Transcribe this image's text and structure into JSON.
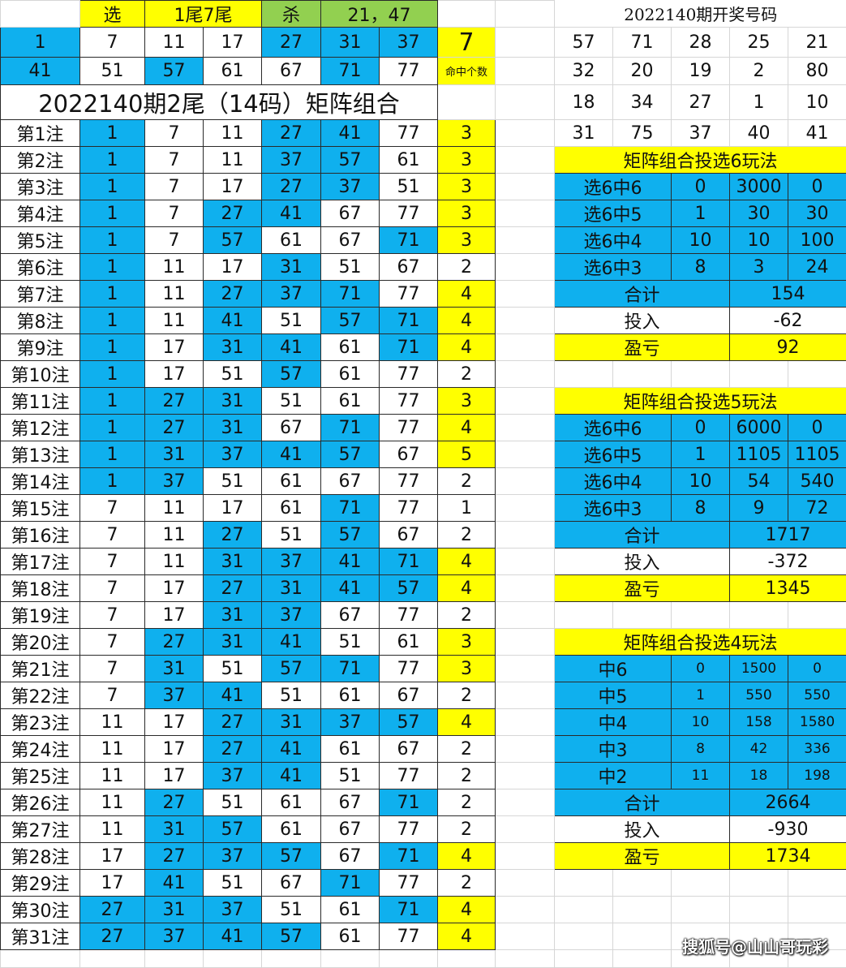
{
  "colors": {
    "hit_blue": "#0fb0ee",
    "highlight_yellow": "#ffff00",
    "kill_green": "#92d050"
  },
  "header": {
    "select_label": "选",
    "select_value": "1尾7尾",
    "kill_label": "杀",
    "kill_value": "21，47"
  },
  "pool": [
    [
      1,
      7,
      11,
      17,
      27,
      31,
      37
    ],
    [
      41,
      51,
      57,
      61,
      67,
      71,
      77
    ]
  ],
  "pool_hits": "7",
  "pool_hits_label": "命中个数",
  "title": "2022140期2尾（14码）矩阵组合",
  "bets": [
    {
      "label": "第1注",
      "nums": [
        1,
        7,
        11,
        27,
        41,
        77
      ],
      "hits": 3
    },
    {
      "label": "第2注",
      "nums": [
        1,
        7,
        11,
        37,
        57,
        61
      ],
      "hits": 3
    },
    {
      "label": "第3注",
      "nums": [
        1,
        7,
        17,
        27,
        37,
        51
      ],
      "hits": 3
    },
    {
      "label": "第4注",
      "nums": [
        1,
        7,
        27,
        41,
        67,
        77
      ],
      "hits": 3
    },
    {
      "label": "第5注",
      "nums": [
        1,
        7,
        57,
        61,
        67,
        71
      ],
      "hits": 3
    },
    {
      "label": "第6注",
      "nums": [
        1,
        11,
        17,
        31,
        51,
        67
      ],
      "hits": 2
    },
    {
      "label": "第7注",
      "nums": [
        1,
        11,
        27,
        37,
        71,
        77
      ],
      "hits": 4
    },
    {
      "label": "第8注",
      "nums": [
        1,
        11,
        41,
        51,
        57,
        71
      ],
      "hits": 4
    },
    {
      "label": "第9注",
      "nums": [
        1,
        17,
        31,
        41,
        61,
        71
      ],
      "hits": 4
    },
    {
      "label": "第10注",
      "nums": [
        1,
        17,
        51,
        57,
        61,
        77
      ],
      "hits": 2
    },
    {
      "label": "第11注",
      "nums": [
        1,
        27,
        31,
        51,
        61,
        77
      ],
      "hits": 3
    },
    {
      "label": "第12注",
      "nums": [
        1,
        27,
        31,
        67,
        71,
        77
      ],
      "hits": 4
    },
    {
      "label": "第13注",
      "nums": [
        1,
        31,
        37,
        41,
        57,
        67
      ],
      "hits": 5
    },
    {
      "label": "第14注",
      "nums": [
        1,
        37,
        51,
        61,
        67,
        77
      ],
      "hits": 2
    },
    {
      "label": "第15注",
      "nums": [
        7,
        11,
        17,
        61,
        71,
        77
      ],
      "hits": 1
    },
    {
      "label": "第16注",
      "nums": [
        7,
        11,
        27,
        51,
        57,
        67
      ],
      "hits": 2
    },
    {
      "label": "第17注",
      "nums": [
        7,
        11,
        31,
        37,
        41,
        71
      ],
      "hits": 4
    },
    {
      "label": "第18注",
      "nums": [
        7,
        17,
        27,
        31,
        41,
        57
      ],
      "hits": 4
    },
    {
      "label": "第19注",
      "nums": [
        7,
        17,
        31,
        37,
        67,
        77
      ],
      "hits": 2
    },
    {
      "label": "第20注",
      "nums": [
        7,
        27,
        31,
        41,
        51,
        61
      ],
      "hits": 3
    },
    {
      "label": "第21注",
      "nums": [
        7,
        31,
        51,
        57,
        71,
        77
      ],
      "hits": 3
    },
    {
      "label": "第22注",
      "nums": [
        7,
        37,
        41,
        51,
        61,
        67
      ],
      "hits": 2
    },
    {
      "label": "第23注",
      "nums": [
        11,
        17,
        27,
        31,
        37,
        57
      ],
      "hits": 4
    },
    {
      "label": "第24注",
      "nums": [
        11,
        17,
        27,
        41,
        61,
        67
      ],
      "hits": 2
    },
    {
      "label": "第25注",
      "nums": [
        11,
        17,
        37,
        41,
        51,
        77
      ],
      "hits": 2
    },
    {
      "label": "第26注",
      "nums": [
        11,
        27,
        51,
        61,
        67,
        71
      ],
      "hits": 2
    },
    {
      "label": "第27注",
      "nums": [
        11,
        31,
        57,
        61,
        67,
        77
      ],
      "hits": 2
    },
    {
      "label": "第28注",
      "nums": [
        17,
        27,
        37,
        57,
        67,
        71
      ],
      "hits": 4
    },
    {
      "label": "第29注",
      "nums": [
        17,
        41,
        51,
        67,
        71,
        77
      ],
      "hits": 2
    },
    {
      "label": "第30注",
      "nums": [
        27,
        31,
        37,
        51,
        61,
        71
      ],
      "hits": 4
    },
    {
      "label": "第31注",
      "nums": [
        27,
        37,
        41,
        57,
        61,
        77
      ],
      "hits": 4
    }
  ],
  "draw": {
    "title": "2022140期开奖号码",
    "rows": [
      [
        57,
        71,
        28,
        25,
        21
      ],
      [
        32,
        20,
        19,
        2,
        80
      ],
      [
        18,
        34,
        27,
        1,
        10
      ],
      [
        31,
        75,
        37,
        40,
        41
      ]
    ]
  },
  "plans": [
    {
      "title": "矩阵组合投选6玩法",
      "rows": [
        [
          "选6中6",
          "0",
          "3000",
          "0"
        ],
        [
          "选6中5",
          "1",
          "30",
          "30"
        ],
        [
          "选6中4",
          "10",
          "10",
          "100"
        ],
        [
          "选6中3",
          "8",
          "3",
          "24"
        ]
      ],
      "total_label": "合计",
      "total": "154",
      "cost_label": "投入",
      "cost": "-62",
      "profit_label": "盈亏",
      "profit": "92"
    },
    {
      "title": "矩阵组合投选5玩法",
      "rows": [
        [
          "选6中6",
          "0",
          "6000",
          "0"
        ],
        [
          "选6中5",
          "1",
          "1105",
          "1105"
        ],
        [
          "选6中4",
          "10",
          "54",
          "540"
        ],
        [
          "选6中3",
          "8",
          "9",
          "72"
        ]
      ],
      "total_label": "合计",
      "total": "1717",
      "cost_label": "投入",
      "cost": "-372",
      "profit_label": "盈亏",
      "profit": "1345"
    },
    {
      "title": "矩阵组合投选4玩法",
      "rows": [
        [
          "中6",
          "0",
          "1500",
          "0"
        ],
        [
          "中5",
          "1",
          "550",
          "550"
        ],
        [
          "中4",
          "10",
          "158",
          "1580"
        ],
        [
          "中3",
          "8",
          "42",
          "336"
        ],
        [
          "中2",
          "11",
          "18",
          "198"
        ]
      ],
      "total_label": "合计",
      "total": "2664",
      "cost_label": "投入",
      "cost": "-930",
      "profit_label": "盈亏",
      "profit": "1734"
    }
  ],
  "watermark": "搜狐号@山山哥玩彩"
}
